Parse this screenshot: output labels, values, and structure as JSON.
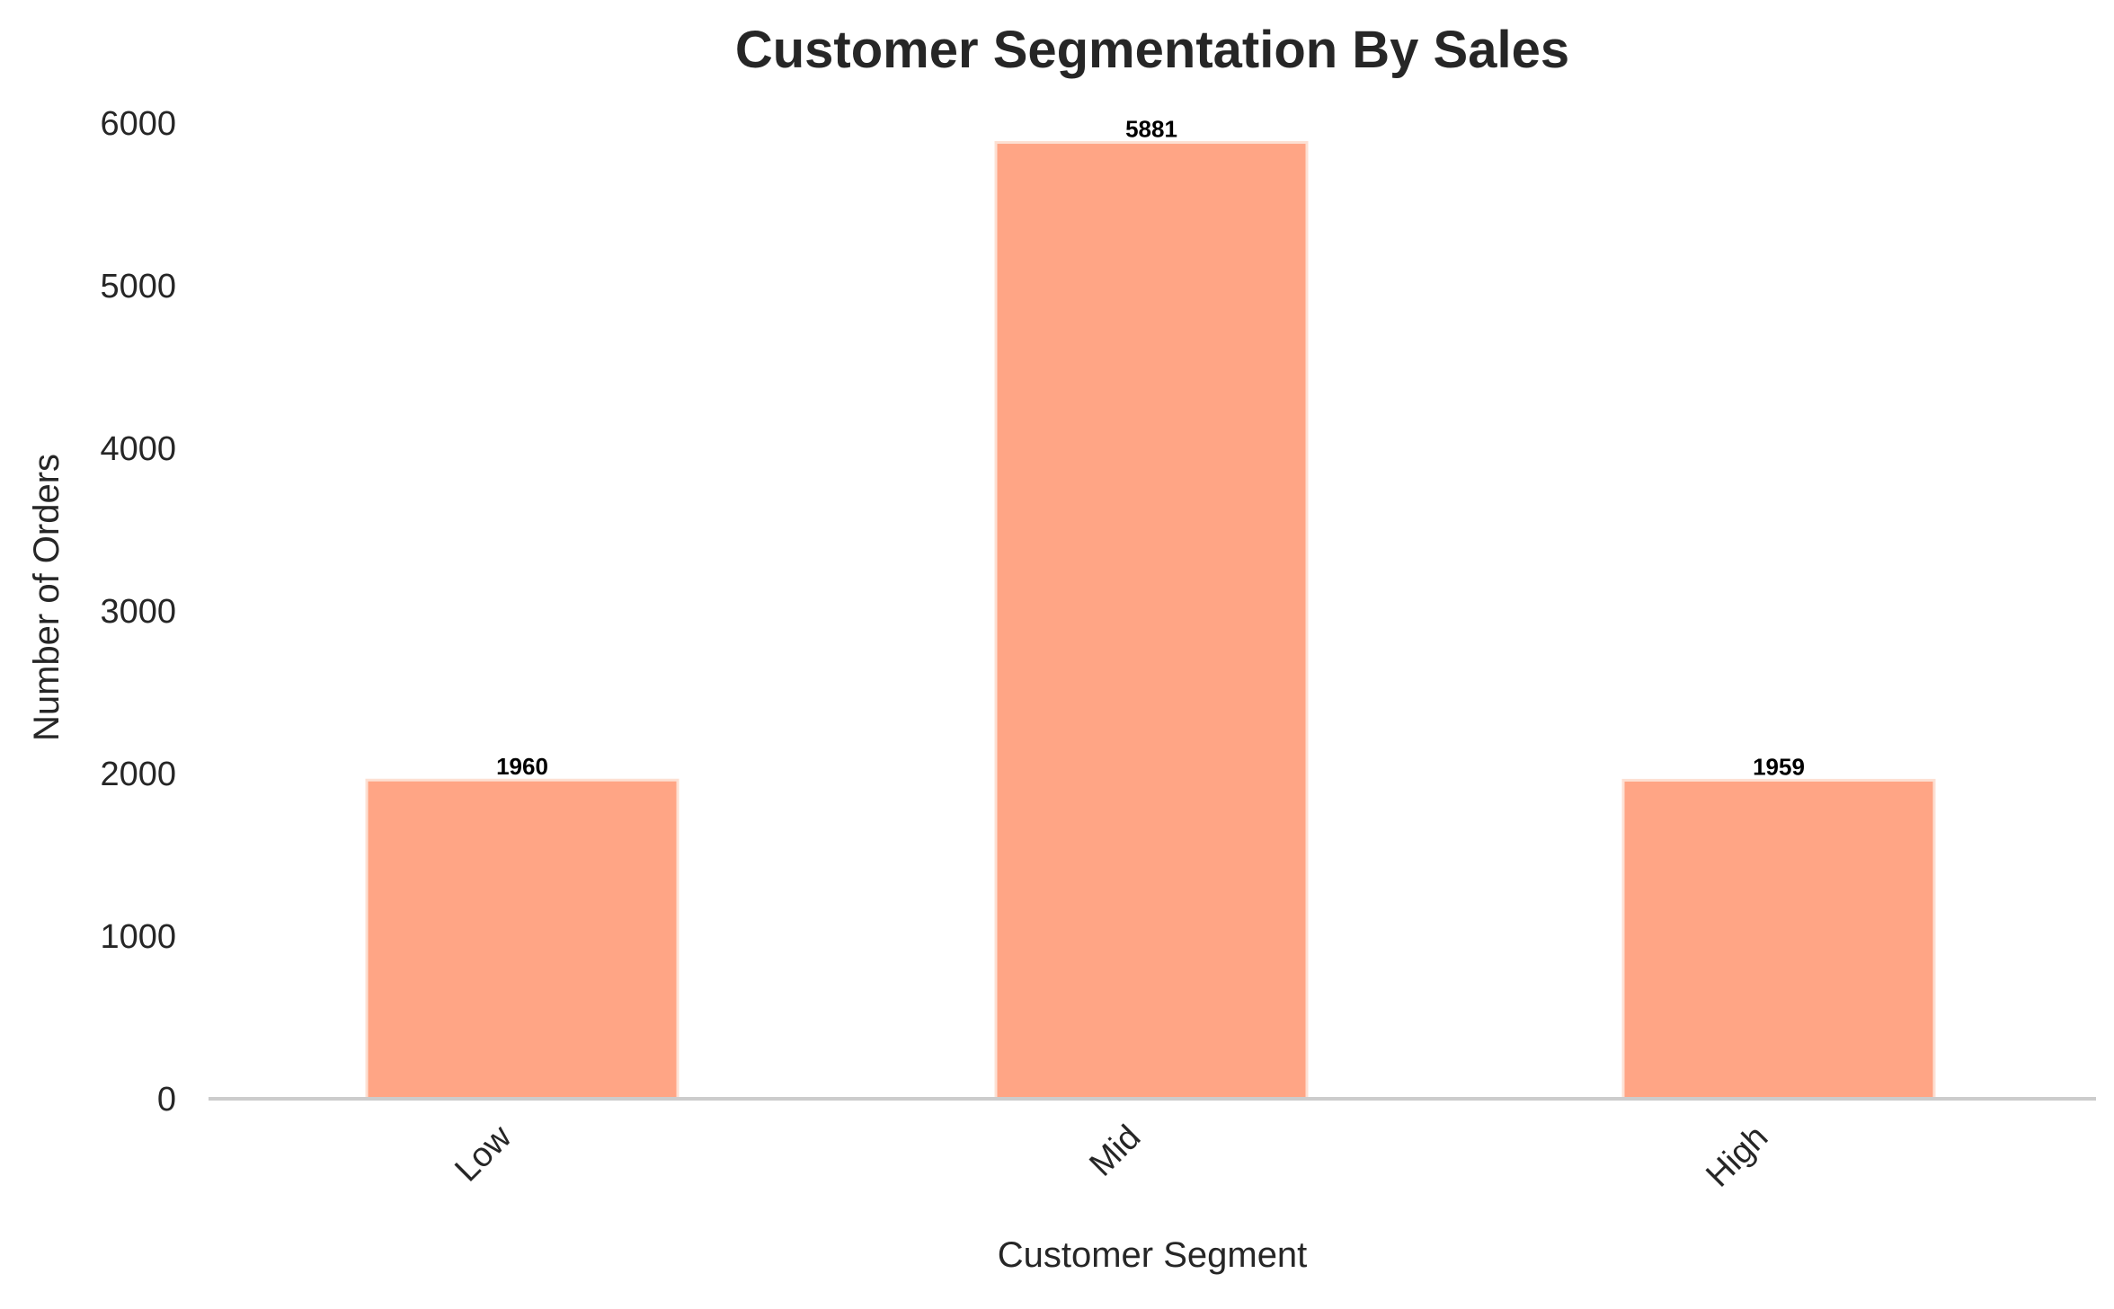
{
  "chart_data": {
    "type": "bar",
    "title": "Customer Segmentation By Sales",
    "xlabel": "Customer Segment",
    "ylabel": "Number of Orders",
    "categories": [
      "Low",
      "Mid",
      "High"
    ],
    "values": [
      1960,
      5881,
      1959
    ],
    "data_labels": [
      "1960",
      "5881",
      "1959"
    ],
    "yticks": [
      0,
      1000,
      2000,
      3000,
      4000,
      5000,
      6000
    ],
    "ylim": [
      0,
      6000
    ],
    "grid": false,
    "legend": "none",
    "x_tick_rotation_deg": 45,
    "colors": {
      "bar": "#FFA585",
      "bar_edge": "#FDE0D3",
      "baseline": "#CCCCCC",
      "text": "#262626",
      "data_label": "#000000"
    }
  }
}
